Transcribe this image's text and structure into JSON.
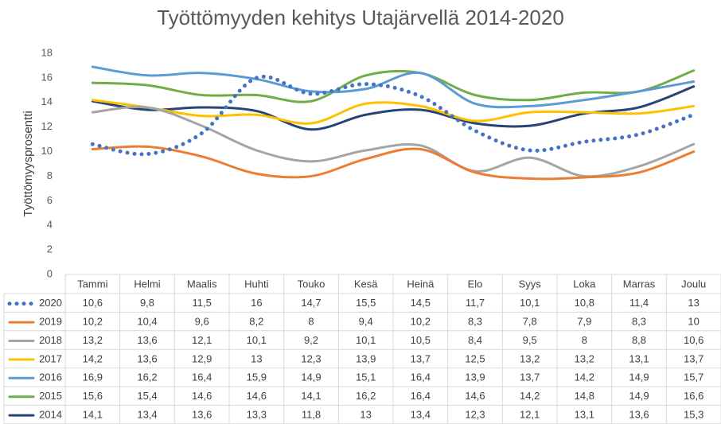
{
  "chart_data": {
    "type": "line",
    "title": "Työttömyyden kehitys Utajärvellä 2014-2020",
    "y_label": "Työttömyysprosentti",
    "categories": [
      "Tammi",
      "Helmi",
      "Maalis",
      "Huhti",
      "Touko",
      "Kesä",
      "Heinä",
      "Elo",
      "Syys",
      "Loka",
      "Marras",
      "Joulu"
    ],
    "ylim": [
      0,
      18
    ],
    "yticks": [
      0,
      2,
      4,
      6,
      8,
      10,
      12,
      14,
      16,
      18
    ],
    "grid": false,
    "data_table": true,
    "series": [
      {
        "name": "2020",
        "color": "#4472c4",
        "style": "dotted",
        "values": [
          10.6,
          9.8,
          11.5,
          16,
          14.7,
          15.5,
          14.5,
          11.7,
          10.1,
          10.8,
          11.4,
          13
        ],
        "value_labels": [
          "10,6",
          "9,8",
          "11,5",
          "16",
          "14,7",
          "15,5",
          "14,5",
          "11,7",
          "10,1",
          "10,8",
          "11,4",
          "13"
        ]
      },
      {
        "name": "2019",
        "color": "#ed7d31",
        "style": "solid",
        "values": [
          10.2,
          10.4,
          9.6,
          8.2,
          8,
          9.4,
          10.2,
          8.3,
          7.8,
          7.9,
          8.3,
          10
        ],
        "value_labels": [
          "10,2",
          "10,4",
          "9,6",
          "8,2",
          "8",
          "9,4",
          "10,2",
          "8,3",
          "7,8",
          "7,9",
          "8,3",
          "10"
        ]
      },
      {
        "name": "2018",
        "color": "#a5a5a5",
        "style": "solid",
        "values": [
          13.2,
          13.6,
          12.1,
          10.1,
          9.2,
          10.1,
          10.5,
          8.4,
          9.5,
          8,
          8.8,
          10.6
        ],
        "value_labels": [
          "13,2",
          "13,6",
          "12,1",
          "10,1",
          "9,2",
          "10,1",
          "10,5",
          "8,4",
          "9,5",
          "8",
          "8,8",
          "10,6"
        ]
      },
      {
        "name": "2017",
        "color": "#ffc000",
        "style": "solid",
        "values": [
          14.2,
          13.6,
          12.9,
          13,
          12.3,
          13.9,
          13.7,
          12.5,
          13.2,
          13.2,
          13.1,
          13.7
        ],
        "value_labels": [
          "14,2",
          "13,6",
          "12,9",
          "13",
          "12,3",
          "13,9",
          "13,7",
          "12,5",
          "13,2",
          "13,2",
          "13,1",
          "13,7"
        ]
      },
      {
        "name": "2016",
        "color": "#5b9bd5",
        "style": "solid",
        "values": [
          16.9,
          16.2,
          16.4,
          15.9,
          14.9,
          15.1,
          16.4,
          13.9,
          13.7,
          14.2,
          14.9,
          15.7
        ],
        "value_labels": [
          "16,9",
          "16,2",
          "16,4",
          "15,9",
          "14,9",
          "15,1",
          "16,4",
          "13,9",
          "13,7",
          "14,2",
          "14,9",
          "15,7"
        ]
      },
      {
        "name": "2015",
        "color": "#70ad47",
        "style": "solid",
        "values": [
          15.6,
          15.4,
          14.6,
          14.6,
          14.1,
          16.2,
          16.4,
          14.6,
          14.2,
          14.8,
          14.9,
          16.6
        ],
        "value_labels": [
          "15,6",
          "15,4",
          "14,6",
          "14,6",
          "14,1",
          "16,2",
          "16,4",
          "14,6",
          "14,2",
          "14,8",
          "14,9",
          "16,6"
        ]
      },
      {
        "name": "2014",
        "color": "#264478",
        "style": "solid",
        "values": [
          14.1,
          13.4,
          13.6,
          13.3,
          11.8,
          13,
          13.4,
          12.3,
          12.1,
          13.1,
          13.6,
          15.3
        ],
        "value_labels": [
          "14,1",
          "13,4",
          "13,6",
          "13,3",
          "11,8",
          "13",
          "13,4",
          "12,3",
          "12,1",
          "13,1",
          "13,6",
          "15,3"
        ]
      }
    ]
  }
}
